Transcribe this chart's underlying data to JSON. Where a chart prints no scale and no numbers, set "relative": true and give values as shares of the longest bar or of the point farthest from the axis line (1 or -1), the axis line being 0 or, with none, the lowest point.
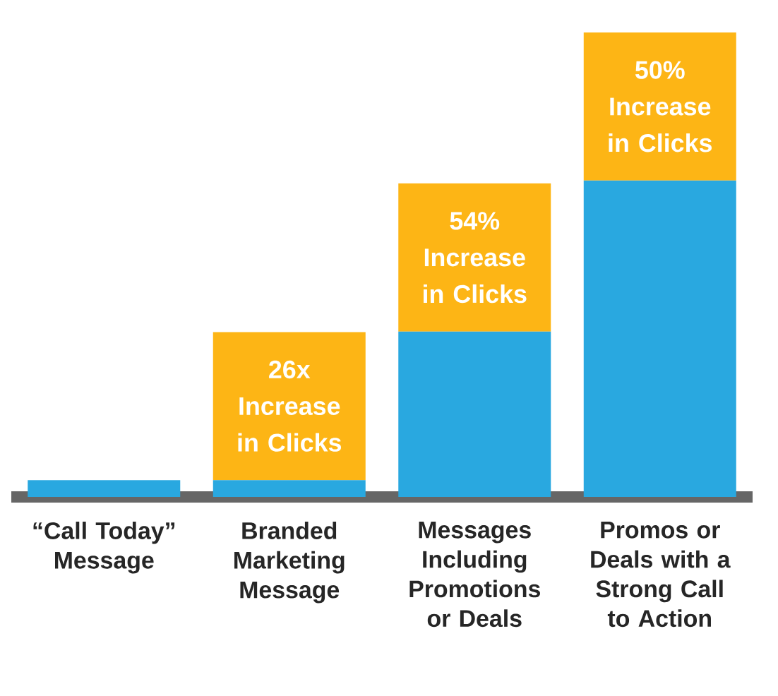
{
  "chart_data": {
    "type": "bar",
    "relative": true,
    "stacked": true,
    "categories": [
      "“Call Today” Message",
      "Branded Marketing Message",
      "Messages Including Promotions or Deals",
      "Promos or Deals with a Strong Call to Action"
    ],
    "series": [
      {
        "color": "#29a8e0",
        "values": [
          0.036,
          0.036,
          0.356,
          0.681
        ]
      },
      {
        "color": "#fdb515",
        "values": [
          0,
          0.319,
          0.319,
          0.319
        ]
      }
    ],
    "annotations": [
      "26x Increase in Clicks",
      "54% Increase in Clicks",
      "50% Increase in Clicks"
    ]
  }
}
